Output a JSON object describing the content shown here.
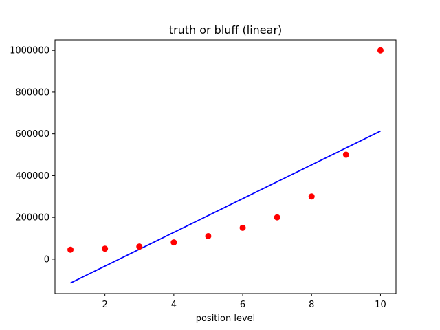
{
  "chart_data": {
    "type": "scatter",
    "title": "truth or bluff (linear)",
    "xlabel": "position level",
    "ylabel": "",
    "xlim": [
      0.55,
      10.45
    ],
    "ylim": [
      -165000,
      1050000
    ],
    "xticks": [
      2,
      4,
      6,
      8,
      10
    ],
    "xtick_labels": [
      "2",
      "4",
      "6",
      "8",
      "10"
    ],
    "yticks": [
      0,
      200000,
      400000,
      600000,
      800000,
      1000000
    ],
    "ytick_labels": [
      "0",
      "200000",
      "400000",
      "600000",
      "800000",
      "1000000"
    ],
    "grid": false,
    "series": [
      {
        "kind": "scatter",
        "color": "#ff0000",
        "x": [
          1,
          2,
          3,
          4,
          5,
          6,
          7,
          8,
          9,
          10
        ],
        "y": [
          45000,
          50000,
          60000,
          80000,
          110000,
          150000,
          200000,
          300000,
          500000,
          1000000
        ]
      },
      {
        "kind": "line",
        "color": "#0000ff",
        "x": [
          1,
          10
        ],
        "y": [
          -114454,
          613000
        ]
      }
    ]
  }
}
